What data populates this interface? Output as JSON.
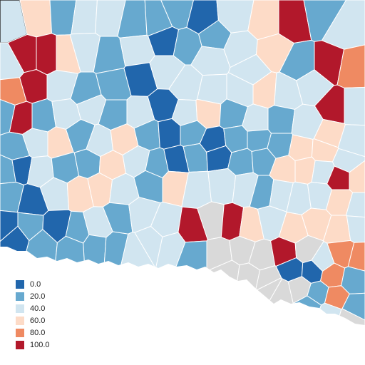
{
  "map": {
    "colors": {
      "c0": "#2166ac",
      "c20": "#67a9cf",
      "c40": "#d1e5f0",
      "c60": "#fddbc7",
      "c80": "#ef8a62",
      "c100": "#b2182b",
      "missing": "#d9d9d9"
    }
  },
  "legend": {
    "items": [
      {
        "label": "0.0",
        "color": "#2166ac"
      },
      {
        "label": "20.0",
        "color": "#67a9cf"
      },
      {
        "label": "40.0",
        "color": "#d1e5f0"
      },
      {
        "label": "60.0",
        "color": "#fddbc7"
      },
      {
        "label": "80.0",
        "color": "#ef8a62"
      },
      {
        "label": "100.0",
        "color": "#b2182b"
      }
    ]
  }
}
